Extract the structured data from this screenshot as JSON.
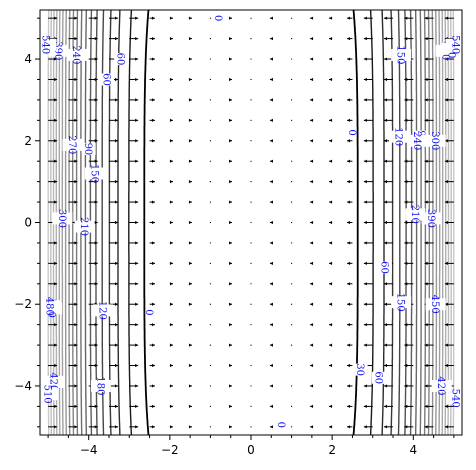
{
  "chart_data": {
    "type": "contour",
    "title": "",
    "xlabel": "",
    "ylabel": "",
    "xlim": [
      -5.2,
      5.2
    ],
    "ylim": [
      -5.2,
      5.2
    ],
    "xticks": [
      -4,
      -2,
      0,
      2,
      4
    ],
    "yticks": [
      -4,
      -2,
      0,
      2,
      4
    ],
    "x_tick_labels": [
      "−4",
      "−2",
      "0",
      "2",
      "4"
    ],
    "y_tick_labels": [
      "−4",
      "−2",
      "0",
      "2",
      "4"
    ],
    "grid": false,
    "legend": "none",
    "contour_levels": [
      0,
      30,
      60,
      90,
      120,
      150,
      180,
      210,
      240,
      270,
      300,
      330,
      360,
      390,
      420,
      450,
      480,
      510,
      540
    ],
    "contour_colors": {
      "low": "#000000",
      "high": "#c8c8c8"
    },
    "contour_labels": [
      {
        "text": "0",
        "x": -0.8,
        "y": 5.0
      },
      {
        "text": "0",
        "x": 2.5,
        "y": 2.2
      },
      {
        "text": "0",
        "x": -2.5,
        "y": -2.2
      },
      {
        "text": "0",
        "x": 0.75,
        "y": -4.95
      },
      {
        "text": "30",
        "x": 2.7,
        "y": -3.6
      },
      {
        "text": "60",
        "x": -3.2,
        "y": 4.0
      },
      {
        "text": "60",
        "x": -3.55,
        "y": 3.5
      },
      {
        "text": "60",
        "x": 3.3,
        "y": -1.1
      },
      {
        "text": "60",
        "x": 3.15,
        "y": -3.8
      },
      {
        "text": "90",
        "x": -4.0,
        "y": 1.8
      },
      {
        "text": "90",
        "x": 4.2,
        "y": 2.1
      },
      {
        "text": "120",
        "x": -3.65,
        "y": -2.15
      },
      {
        "text": "120",
        "x": 3.65,
        "y": 2.1
      },
      {
        "text": "150",
        "x": 3.7,
        "y": 4.1
      },
      {
        "text": "150",
        "x": 3.7,
        "y": -1.95
      },
      {
        "text": "150",
        "x": -3.85,
        "y": 1.2
      },
      {
        "text": "180",
        "x": -3.7,
        "y": -4.0
      },
      {
        "text": "210",
        "x": -4.1,
        "y": -0.1
      },
      {
        "text": "210",
        "x": 4.05,
        "y": 0.2
      },
      {
        "text": "240",
        "x": -4.3,
        "y": 4.1
      },
      {
        "text": "240",
        "x": 4.1,
        "y": 2.0
      },
      {
        "text": "270",
        "x": -4.4,
        "y": 1.9
      },
      {
        "text": "300",
        "x": -4.65,
        "y": 0.1
      },
      {
        "text": "300",
        "x": 4.55,
        "y": 2.0
      },
      {
        "text": "360",
        "x": -4.9,
        "y": -2.1
      },
      {
        "text": "390",
        "x": -4.75,
        "y": 4.2
      },
      {
        "text": "390",
        "x": 4.45,
        "y": 0.1
      },
      {
        "text": "420",
        "x": 4.7,
        "y": -4.0
      },
      {
        "text": "420",
        "x": -4.85,
        "y": -3.9
      },
      {
        "text": "450",
        "x": 4.55,
        "y": -2.0
      },
      {
        "text": "480",
        "x": -4.95,
        "y": -2.05
      },
      {
        "text": "480",
        "x": 4.8,
        "y": 4.2
      },
      {
        "text": "510",
        "x": -5.0,
        "y": -4.2
      },
      {
        "text": "510",
        "x": 4.95,
        "y": 4.25
      },
      {
        "text": "540",
        "x": -5.05,
        "y": 4.35
      },
      {
        "text": "540",
        "x": 5.05,
        "y": 4.35
      },
      {
        "text": "540",
        "x": 5.05,
        "y": -4.3
      }
    ],
    "vector_field": {
      "grid_step": 0.5,
      "direction": "points toward the x = 0 axis",
      "color": "#000000"
    }
  }
}
